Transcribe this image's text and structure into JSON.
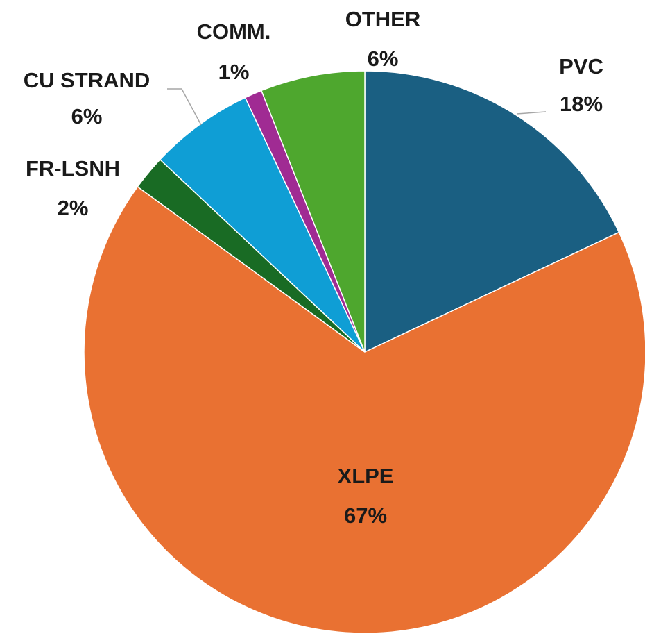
{
  "chart_data": {
    "type": "pie",
    "categories": [
      "PVC",
      "XLPE",
      "FR-LSNH",
      "CU STRAND",
      "COMM.",
      "OTHER"
    ],
    "values": [
      18,
      67,
      2,
      6,
      1,
      6
    ],
    "value_labels": [
      "18%",
      "67%",
      "2%",
      "6%",
      "1%",
      "6%"
    ],
    "colors": [
      "#1a5f82",
      "#e97132",
      "#196b24",
      "#0f9ed5",
      "#a02b93",
      "#4ea72e"
    ]
  }
}
